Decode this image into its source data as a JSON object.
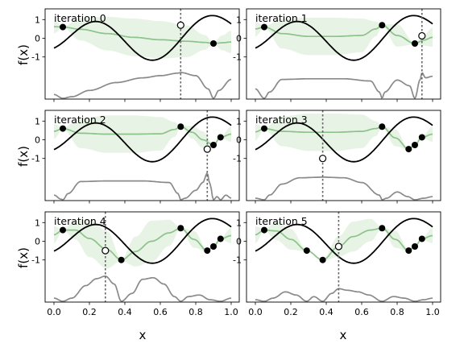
{
  "chart_data": {
    "type": "line",
    "xlabel": "x",
    "ylabel": "f(x)",
    "xlim": [
      0,
      1
    ],
    "ylim": [
      -1.6,
      1.6
    ],
    "xticks": [
      0.0,
      0.2,
      0.4,
      0.6,
      0.8,
      1.0
    ],
    "xtick_labels": [
      "0.0",
      "0.2",
      "0.4",
      "0.6",
      "0.8",
      "1.0"
    ],
    "yticks": [
      -1,
      0,
      1
    ],
    "ytick_labels": [
      "-1",
      "0",
      "1"
    ],
    "panels": [
      {
        "title": "iteration 0",
        "observed": [
          {
            "x": 0.05,
            "y": 0.6
          },
          {
            "x": 0.9,
            "y": -0.28
          }
        ],
        "next": {
          "x": 0.715,
          "y": 0.7
        },
        "mean_x": [
          0.0,
          0.05,
          0.15,
          0.3,
          0.45,
          0.6,
          0.75,
          0.85,
          0.9,
          0.95,
          1.0
        ],
        "mean_y": [
          0.62,
          0.6,
          0.48,
          0.25,
          0.05,
          -0.08,
          -0.16,
          -0.22,
          -0.28,
          -0.24,
          -0.2
        ],
        "std": [
          0.35,
          0.04,
          0.6,
          0.9,
          1.0,
          1.0,
          0.85,
          0.4,
          0.04,
          0.4,
          0.6
        ],
        "acq_x": [
          0.0,
          0.05,
          0.1,
          0.2,
          0.35,
          0.5,
          0.6,
          0.7,
          0.715,
          0.8,
          0.87,
          0.9,
          0.93,
          1.0
        ],
        "acq_y": [
          0.12,
          0.0,
          0.05,
          0.25,
          0.5,
          0.65,
          0.72,
          0.8,
          0.82,
          0.72,
          0.3,
          0.0,
          0.25,
          0.6
        ]
      },
      {
        "title": "iteration 1",
        "observed": [
          {
            "x": 0.05,
            "y": 0.6
          },
          {
            "x": 0.715,
            "y": 0.7
          },
          {
            "x": 0.9,
            "y": -0.28
          }
        ],
        "next": {
          "x": 0.94,
          "y": 0.13
        },
        "mean_x": [
          0.0,
          0.05,
          0.15,
          0.3,
          0.45,
          0.6,
          0.68,
          0.715,
          0.8,
          0.9,
          0.95,
          1.0
        ],
        "mean_y": [
          0.5,
          0.6,
          0.25,
          0.1,
          0.1,
          0.15,
          0.5,
          0.7,
          0.15,
          -0.28,
          -0.1,
          0.05
        ],
        "std": [
          0.4,
          0.04,
          0.8,
          1.0,
          1.0,
          0.9,
          0.4,
          0.04,
          0.6,
          0.04,
          0.3,
          0.5
        ],
        "acq_x": [
          0.0,
          0.05,
          0.08,
          0.15,
          0.3,
          0.5,
          0.65,
          0.7,
          0.715,
          0.73,
          0.8,
          0.87,
          0.9,
          0.93,
          0.94,
          0.96,
          1.0
        ],
        "acq_y": [
          0.3,
          0.0,
          0.2,
          0.6,
          0.62,
          0.62,
          0.55,
          0.2,
          0.0,
          0.2,
          0.58,
          0.4,
          0.0,
          0.6,
          0.82,
          0.65,
          0.7
        ]
      },
      {
        "title": "iteration 2",
        "observed": [
          {
            "x": 0.05,
            "y": 0.6
          },
          {
            "x": 0.715,
            "y": 0.7
          },
          {
            "x": 0.9,
            "y": -0.28
          },
          {
            "x": 0.94,
            "y": 0.13
          }
        ],
        "next": {
          "x": 0.865,
          "y": -0.5
        },
        "mean_x": [
          0.0,
          0.05,
          0.15,
          0.3,
          0.45,
          0.6,
          0.68,
          0.715,
          0.78,
          0.84,
          0.9,
          0.94,
          1.0
        ],
        "mean_y": [
          0.45,
          0.6,
          0.35,
          0.3,
          0.3,
          0.32,
          0.55,
          0.7,
          0.4,
          0.0,
          -0.28,
          0.13,
          0.3
        ],
        "std": [
          0.4,
          0.04,
          0.8,
          1.0,
          1.0,
          0.9,
          0.4,
          0.04,
          0.35,
          0.45,
          0.04,
          0.04,
          0.4
        ],
        "acq_x": [
          0.0,
          0.04,
          0.05,
          0.08,
          0.15,
          0.3,
          0.5,
          0.65,
          0.7,
          0.715,
          0.74,
          0.8,
          0.84,
          0.865,
          0.88,
          0.9,
          0.92,
          0.94,
          0.97,
          1.0
        ],
        "acq_y": [
          0.15,
          0.02,
          0.0,
          0.2,
          0.58,
          0.6,
          0.6,
          0.55,
          0.2,
          0.0,
          0.05,
          0.3,
          0.55,
          0.85,
          0.5,
          0.0,
          0.1,
          0.0,
          0.15,
          0.05
        ]
      },
      {
        "title": "iteration 3",
        "observed": [
          {
            "x": 0.05,
            "y": 0.6
          },
          {
            "x": 0.715,
            "y": 0.7
          },
          {
            "x": 0.865,
            "y": -0.5
          },
          {
            "x": 0.9,
            "y": -0.28
          },
          {
            "x": 0.94,
            "y": 0.13
          }
        ],
        "next": {
          "x": 0.38,
          "y": -1.0
        },
        "mean_x": [
          0.0,
          0.05,
          0.15,
          0.3,
          0.45,
          0.6,
          0.68,
          0.715,
          0.79,
          0.865,
          0.9,
          0.94,
          1.0
        ],
        "mean_y": [
          0.42,
          0.6,
          0.45,
          0.4,
          0.4,
          0.45,
          0.6,
          0.7,
          0.1,
          -0.5,
          -0.28,
          0.13,
          0.3
        ],
        "std": [
          0.45,
          0.04,
          0.8,
          1.0,
          1.0,
          0.9,
          0.4,
          0.04,
          0.45,
          0.04,
          0.04,
          0.04,
          0.4
        ],
        "acq_x": [
          0.0,
          0.05,
          0.08,
          0.15,
          0.25,
          0.38,
          0.5,
          0.6,
          0.7,
          0.715,
          0.74,
          0.8,
          0.86,
          0.9,
          0.95,
          1.0
        ],
        "acq_y": [
          0.05,
          0.0,
          0.15,
          0.5,
          0.7,
          0.72,
          0.7,
          0.55,
          0.15,
          0.0,
          0.05,
          0.25,
          0.1,
          0.0,
          0.05,
          0.1
        ]
      },
      {
        "title": "iteration 4",
        "observed": [
          {
            "x": 0.05,
            "y": 0.6
          },
          {
            "x": 0.38,
            "y": -1.0
          },
          {
            "x": 0.715,
            "y": 0.7
          },
          {
            "x": 0.865,
            "y": -0.5
          },
          {
            "x": 0.9,
            "y": -0.28
          },
          {
            "x": 0.94,
            "y": 0.13
          }
        ],
        "next": {
          "x": 0.29,
          "y": -0.5
        },
        "mean_x": [
          0.0,
          0.05,
          0.12,
          0.2,
          0.3,
          0.38,
          0.46,
          0.55,
          0.65,
          0.715,
          0.79,
          0.865,
          0.9,
          0.94,
          1.0
        ],
        "mean_y": [
          0.35,
          0.6,
          0.6,
          0.15,
          -0.45,
          -1.0,
          -0.55,
          0.0,
          0.45,
          0.7,
          0.1,
          -0.5,
          -0.28,
          0.13,
          0.3
        ],
        "std": [
          0.45,
          0.04,
          0.5,
          1.0,
          1.0,
          0.04,
          0.8,
          1.1,
          0.7,
          0.04,
          0.45,
          0.04,
          0.04,
          0.04,
          0.4
        ],
        "acq_x": [
          0.0,
          0.05,
          0.1,
          0.18,
          0.24,
          0.29,
          0.34,
          0.38,
          0.44,
          0.5,
          0.56,
          0.62,
          0.68,
          0.715,
          0.76,
          0.82,
          0.88,
          0.94,
          1.0
        ],
        "acq_y": [
          0.1,
          0.0,
          0.1,
          0.5,
          0.72,
          0.8,
          0.55,
          0.0,
          0.25,
          0.7,
          0.75,
          0.55,
          0.15,
          0.0,
          0.15,
          0.2,
          0.05,
          0.0,
          0.1
        ]
      },
      {
        "title": "iteration 5",
        "observed": [
          {
            "x": 0.05,
            "y": 0.6
          },
          {
            "x": 0.29,
            "y": -0.5
          },
          {
            "x": 0.38,
            "y": -1.0
          },
          {
            "x": 0.715,
            "y": 0.7
          },
          {
            "x": 0.865,
            "y": -0.5
          },
          {
            "x": 0.9,
            "y": -0.28
          },
          {
            "x": 0.94,
            "y": 0.13
          }
        ],
        "next": {
          "x": 0.47,
          "y": -0.28
        },
        "mean_x": [
          0.0,
          0.05,
          0.12,
          0.2,
          0.29,
          0.38,
          0.47,
          0.55,
          0.65,
          0.715,
          0.79,
          0.865,
          0.9,
          0.94,
          1.0
        ],
        "mean_y": [
          0.35,
          0.6,
          0.55,
          0.1,
          -0.5,
          -1.0,
          -0.28,
          0.25,
          0.6,
          0.7,
          0.1,
          -0.5,
          -0.28,
          0.13,
          0.3
        ],
        "std": [
          0.45,
          0.04,
          0.5,
          0.55,
          0.04,
          0.04,
          0.55,
          0.8,
          0.6,
          0.04,
          0.45,
          0.04,
          0.04,
          0.04,
          0.4
        ],
        "acq_x": [
          0.0,
          0.05,
          0.1,
          0.17,
          0.23,
          0.29,
          0.33,
          0.38,
          0.43,
          0.47,
          0.52,
          0.58,
          0.64,
          0.715,
          0.78,
          0.84,
          0.9,
          0.95,
          1.0
        ],
        "acq_y": [
          0.05,
          0.0,
          0.1,
          0.3,
          0.2,
          0.0,
          0.15,
          0.0,
          0.25,
          0.4,
          0.35,
          0.3,
          0.2,
          0.0,
          0.15,
          0.1,
          0.0,
          0.05,
          0.1
        ]
      }
    ]
  }
}
